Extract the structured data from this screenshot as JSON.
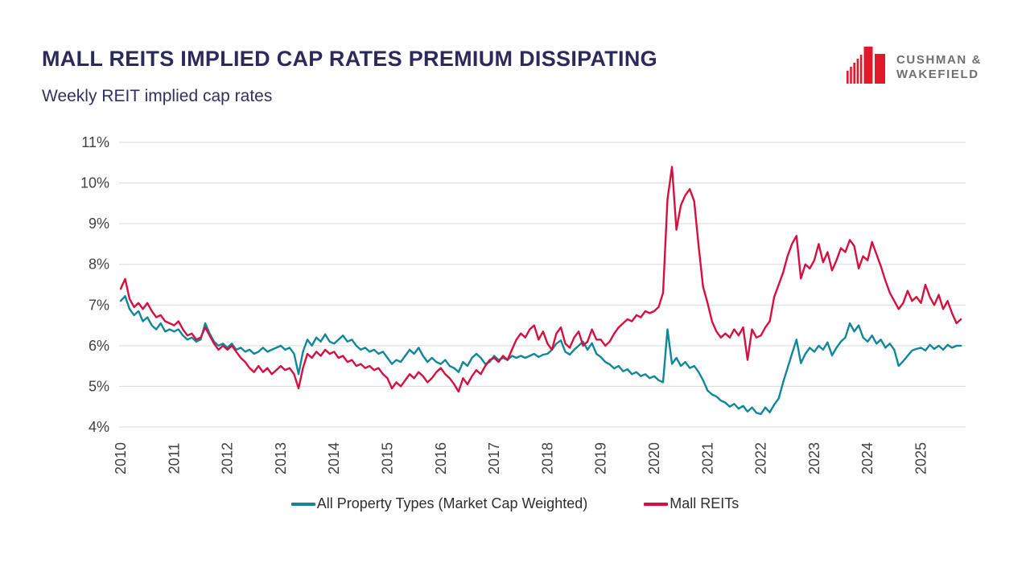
{
  "header": {
    "title": "MALL REITS IMPLIED CAP RATES PREMIUM DISSIPATING",
    "subtitle": "Weekly REIT implied cap rates"
  },
  "logo": {
    "line1": "CUSHMAN &",
    "line2": "WAKEFIELD",
    "icon_color": "#E01A2B",
    "text_color": "#6E6F72"
  },
  "colors": {
    "title_navy": "#2B2A5A",
    "axis_text": "#404040",
    "gridline": "#D9D9D9"
  },
  "chart_data": {
    "type": "line",
    "title": "Weekly REIT implied cap rates",
    "xlabel": "",
    "ylabel": "",
    "grid": "horizontal",
    "legend_position": "bottom",
    "xlim": [
      2010,
      2025.8
    ],
    "ylim": [
      4,
      11
    ],
    "x_ticks": [
      2010,
      2011,
      2012,
      2013,
      2014,
      2015,
      2016,
      2017,
      2018,
      2019,
      2020,
      2021,
      2022,
      2023,
      2024,
      2025
    ],
    "y_ticks": [
      4,
      5,
      6,
      7,
      8,
      9,
      10,
      11
    ],
    "y_tick_suffix": "%",
    "x_start": 2010.0,
    "x_step_years": 0.08333,
    "series": [
      {
        "name": "All Property Types (Market Cap Weighted)",
        "color": "#0F879B",
        "values": [
          7.1,
          7.22,
          6.9,
          6.75,
          6.85,
          6.6,
          6.7,
          6.5,
          6.4,
          6.55,
          6.35,
          6.4,
          6.35,
          6.4,
          6.25,
          6.15,
          6.2,
          6.1,
          6.15,
          6.55,
          6.3,
          6.1,
          6.0,
          6.05,
          5.95,
          6.05,
          5.9,
          5.95,
          5.85,
          5.9,
          5.8,
          5.85,
          5.95,
          5.85,
          5.9,
          5.95,
          6.0,
          5.9,
          5.95,
          5.8,
          5.3,
          5.85,
          6.15,
          6.0,
          6.2,
          6.1,
          6.28,
          6.1,
          6.05,
          6.15,
          6.25,
          6.1,
          6.15,
          6.0,
          5.9,
          5.95,
          5.85,
          5.9,
          5.8,
          5.85,
          5.7,
          5.55,
          5.65,
          5.6,
          5.75,
          5.9,
          5.8,
          5.95,
          5.75,
          5.6,
          5.7,
          5.6,
          5.55,
          5.65,
          5.5,
          5.45,
          5.35,
          5.6,
          5.5,
          5.7,
          5.8,
          5.7,
          5.55,
          5.6,
          5.75,
          5.65,
          5.7,
          5.65,
          5.75,
          5.7,
          5.75,
          5.7,
          5.75,
          5.8,
          5.72,
          5.78,
          5.8,
          5.9,
          6.05,
          6.13,
          5.85,
          5.78,
          5.9,
          6.0,
          6.1,
          5.9,
          6.06,
          5.8,
          5.72,
          5.6,
          5.54,
          5.44,
          5.5,
          5.37,
          5.42,
          5.3,
          5.35,
          5.25,
          5.3,
          5.2,
          5.25,
          5.15,
          5.1,
          6.4,
          5.55,
          5.7,
          5.5,
          5.6,
          5.45,
          5.5,
          5.35,
          5.15,
          4.9,
          4.8,
          4.75,
          4.65,
          4.6,
          4.5,
          4.57,
          4.45,
          4.52,
          4.38,
          4.48,
          4.35,
          4.32,
          4.48,
          4.36,
          4.55,
          4.7,
          5.1,
          5.45,
          5.8,
          6.15,
          5.57,
          5.8,
          5.95,
          5.85,
          6.0,
          5.9,
          6.08,
          5.76,
          5.95,
          6.1,
          6.2,
          6.55,
          6.35,
          6.5,
          6.2,
          6.1,
          6.25,
          6.05,
          6.15,
          5.95,
          6.05,
          5.9,
          5.5,
          5.62,
          5.75,
          5.88,
          5.92,
          5.95,
          5.88,
          6.02,
          5.92,
          6.0,
          5.9,
          6.02,
          5.95,
          6.0,
          6.0
        ]
      },
      {
        "name": "Mall REITs",
        "color": "#D60F3F",
        "values": [
          7.4,
          7.64,
          7.15,
          6.95,
          7.05,
          6.9,
          7.05,
          6.85,
          6.7,
          6.75,
          6.6,
          6.55,
          6.5,
          6.6,
          6.4,
          6.25,
          6.3,
          6.15,
          6.2,
          6.45,
          6.25,
          6.05,
          5.9,
          6.0,
          5.9,
          6.0,
          5.85,
          5.7,
          5.6,
          5.45,
          5.35,
          5.5,
          5.35,
          5.45,
          5.3,
          5.4,
          5.5,
          5.4,
          5.45,
          5.3,
          4.95,
          5.45,
          5.8,
          5.7,
          5.85,
          5.75,
          5.9,
          5.8,
          5.85,
          5.7,
          5.75,
          5.6,
          5.65,
          5.5,
          5.55,
          5.45,
          5.5,
          5.4,
          5.45,
          5.3,
          5.2,
          4.95,
          5.1,
          5.0,
          5.15,
          5.3,
          5.2,
          5.35,
          5.25,
          5.1,
          5.2,
          5.35,
          5.45,
          5.3,
          5.2,
          5.05,
          4.87,
          5.2,
          5.05,
          5.25,
          5.4,
          5.3,
          5.5,
          5.65,
          5.7,
          5.6,
          5.75,
          5.65,
          5.9,
          6.15,
          6.3,
          6.2,
          6.4,
          6.5,
          6.15,
          6.35,
          6.05,
          5.9,
          6.3,
          6.45,
          6.05,
          5.95,
          6.2,
          6.35,
          6.0,
          6.1,
          6.4,
          6.15,
          6.15,
          6.0,
          6.1,
          6.3,
          6.45,
          6.55,
          6.65,
          6.6,
          6.75,
          6.7,
          6.85,
          6.8,
          6.85,
          6.95,
          7.3,
          9.6,
          10.4,
          8.85,
          9.45,
          9.7,
          9.85,
          9.55,
          8.45,
          7.45,
          7.05,
          6.6,
          6.35,
          6.2,
          6.3,
          6.2,
          6.4,
          6.25,
          6.45,
          5.65,
          6.4,
          6.2,
          6.25,
          6.45,
          6.6,
          7.2,
          7.5,
          7.8,
          8.2,
          8.5,
          8.7,
          7.65,
          8.0,
          7.9,
          8.1,
          8.5,
          8.05,
          8.3,
          7.85,
          8.1,
          8.4,
          8.3,
          8.6,
          8.45,
          7.9,
          8.2,
          8.1,
          8.55,
          8.25,
          7.95,
          7.6,
          7.3,
          7.1,
          6.9,
          7.05,
          7.35,
          7.1,
          7.2,
          7.05,
          7.5,
          7.2,
          7.0,
          7.25,
          6.9,
          7.1,
          6.8,
          6.55,
          6.65
        ]
      }
    ]
  }
}
